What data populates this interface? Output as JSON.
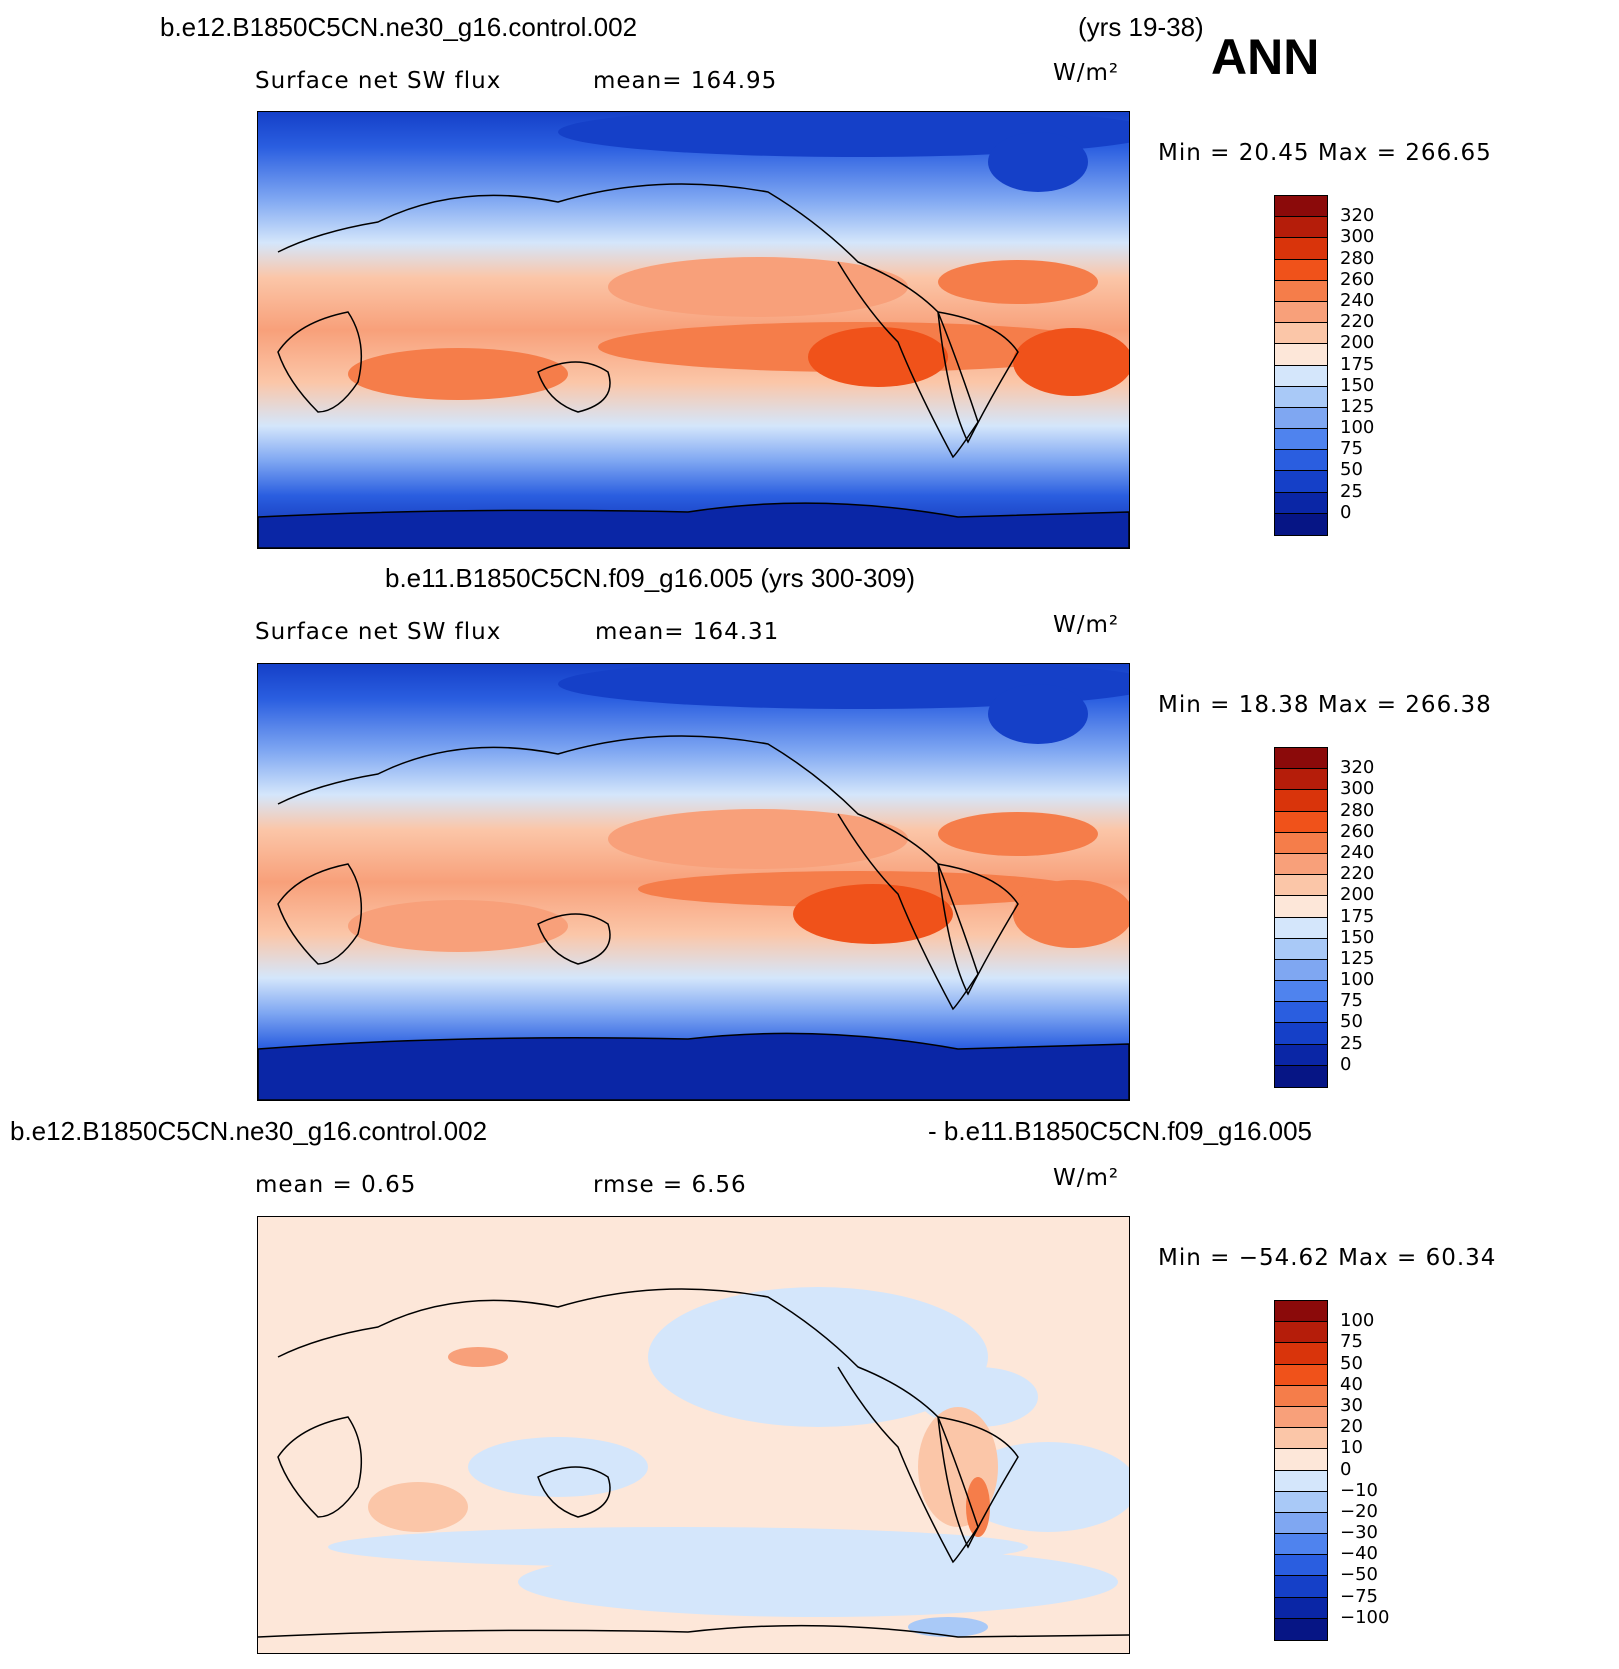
{
  "season": "ANN",
  "panel1": {
    "title_left": "b.e12.B1850C5CN.ne30_g16.control.002",
    "title_right": "(yrs 19-38)",
    "variable": "Surface net SW flux",
    "stat": "mean=  164.95",
    "units": "W/m²",
    "minmax": "Min =   20.45  Max =  266.65"
  },
  "panel2": {
    "title": "b.e11.B1850C5CN.f09_g16.005 (yrs 300-309)",
    "variable": "Surface net SW flux",
    "stat": "mean=  164.31",
    "units": "W/m²",
    "minmax": "Min =   18.38  Max =  266.38"
  },
  "panel3": {
    "title_left": "b.e12.B1850C5CN.ne30_g16.control.002",
    "title_right": "- b.e11.B1850C5CN.f09_g16.005",
    "mean": "mean =    0.65",
    "rmse": "rmse =    6.56",
    "units": "W/m²",
    "minmax": "Min = −54.62  Max =   60.34"
  },
  "colorbar_abs": {
    "labels": [
      "320",
      "300",
      "280",
      "260",
      "240",
      "220",
      "200",
      "175",
      "150",
      "125",
      "100",
      "75",
      "50",
      "25",
      "0"
    ],
    "colors": [
      "#8b0a0a",
      "#b51d0a",
      "#d9340b",
      "#f0521a",
      "#f57d4a",
      "#f8a07a",
      "#fbc6a8",
      "#fde7d9",
      "#d4e6fb",
      "#a9c9f7",
      "#7fa7f2",
      "#4f83ee",
      "#2a5ee0",
      "#1540c8",
      "#0a26a6",
      "#061585"
    ]
  },
  "colorbar_diff": {
    "labels": [
      "100",
      "75",
      "50",
      "40",
      "30",
      "20",
      "10",
      "0",
      "−10",
      "−20",
      "−30",
      "−40",
      "−50",
      "−75",
      "−100"
    ],
    "colors": [
      "#8b0a0a",
      "#b51d0a",
      "#d9340b",
      "#f0521a",
      "#f57d4a",
      "#f8a07a",
      "#fbc6a8",
      "#fde7d9",
      "#d4e6fb",
      "#a9c9f7",
      "#7fa7f2",
      "#4f83ee",
      "#2a5ee0",
      "#1540c8",
      "#0a26a6",
      "#061585"
    ]
  }
}
